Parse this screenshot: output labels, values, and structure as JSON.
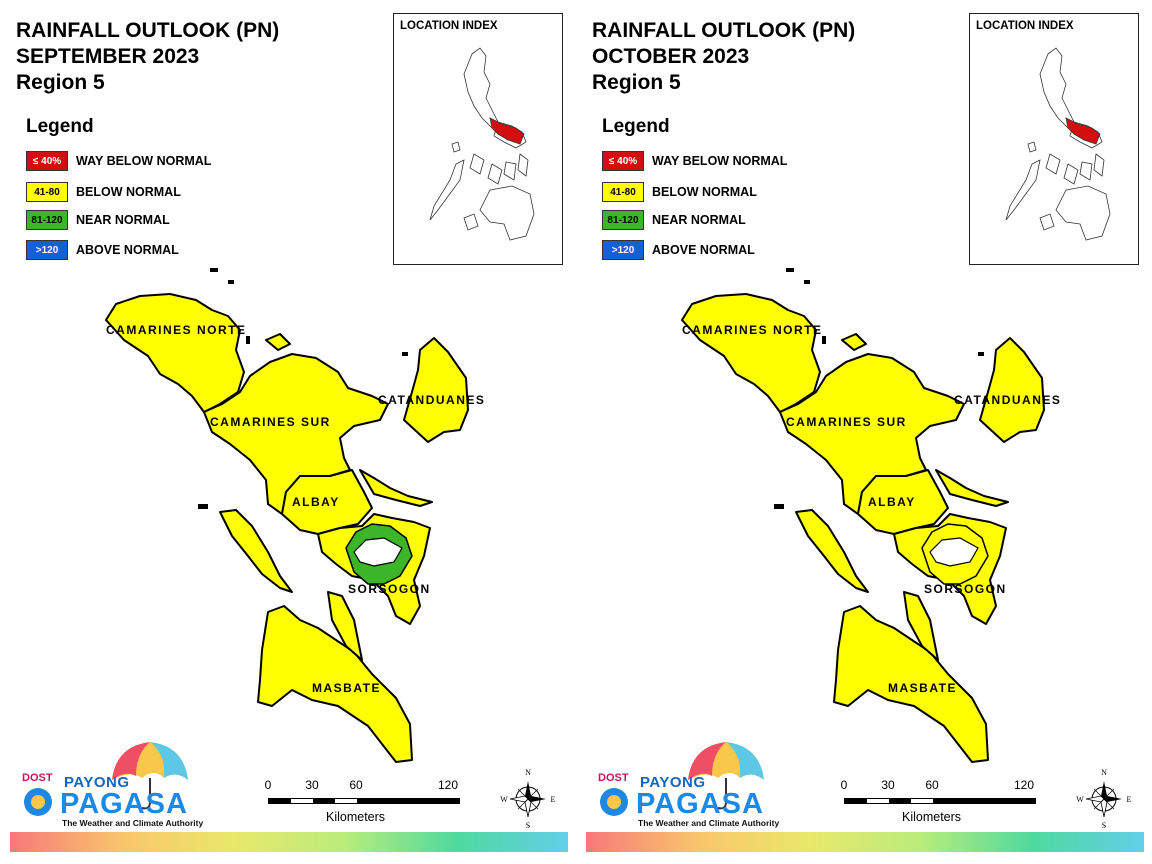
{
  "panels": [
    {
      "title": [
        "RAINFALL OUTLOOK (PN)",
        "SEPTEMBER 2023",
        "Region 5"
      ],
      "legend_title": "Legend",
      "legend": [
        {
          "code": "≤ 40%",
          "label": "WAY BELOW NORMAL",
          "color": "#d40e0e",
          "text_color": "#ffffff"
        },
        {
          "code": "41-80",
          "label": "BELOW NORMAL",
          "color": "#ffff00",
          "text_color": "#000000"
        },
        {
          "code": "81-120",
          "label": "NEAR NORMAL",
          "color": "#3cb528",
          "text_color": "#000000"
        },
        {
          "code": ">120",
          "label": "ABOVE NORMAL",
          "color": "#1560d6",
          "text_color": "#ffffff"
        }
      ],
      "location_index": "LOCATION INDEX",
      "provinces": [
        "CAMARINES NORTE",
        "CATANDUANES",
        "CAMARINES SUR",
        "ALBAY",
        "SORSOGON",
        "MASBATE"
      ],
      "province_class": {
        "CAMARINES NORTE": "BELOW NORMAL",
        "CATANDUANES": "BELOW NORMAL",
        "CAMARINES SUR": "BELOW NORMAL",
        "ALBAY": "BELOW NORMAL",
        "SORSOGON": "BELOW NORMAL (with NEAR NORMAL area)",
        "MASBATE": "BELOW NORMAL"
      },
      "scale": {
        "ticks": [
          "0",
          "30",
          "60",
          "120"
        ],
        "unit": "Kilometers"
      },
      "compass": [
        "N",
        "E",
        "S",
        "W"
      ],
      "logo": {
        "dost": "DOST",
        "payong": "PAYONG",
        "pagasa": "PAGASA",
        "tagline": "The Weather and Climate Authority"
      }
    },
    {
      "title": [
        "RAINFALL OUTLOOK (PN)",
        "OCTOBER 2023",
        "Region 5"
      ],
      "legend_title": "Legend",
      "legend": [
        {
          "code": "≤ 40%",
          "label": "WAY BELOW NORMAL",
          "color": "#d40e0e",
          "text_color": "#ffffff"
        },
        {
          "code": "41-80",
          "label": "BELOW NORMAL",
          "color": "#ffff00",
          "text_color": "#000000"
        },
        {
          "code": "81-120",
          "label": "NEAR NORMAL",
          "color": "#3cb528",
          "text_color": "#000000"
        },
        {
          "code": ">120",
          "label": "ABOVE NORMAL",
          "color": "#1560d6",
          "text_color": "#ffffff"
        }
      ],
      "location_index": "LOCATION INDEX",
      "provinces": [
        "CAMARINES NORTE",
        "CATANDUANES",
        "CAMARINES SUR",
        "ALBAY",
        "SORSOGON",
        "MASBATE"
      ],
      "province_class": {
        "CAMARINES NORTE": "BELOW NORMAL",
        "CATANDUANES": "BELOW NORMAL",
        "CAMARINES SUR": "BELOW NORMAL",
        "ALBAY": "BELOW NORMAL",
        "SORSOGON": "BELOW NORMAL",
        "MASBATE": "BELOW NORMAL"
      },
      "scale": {
        "ticks": [
          "0",
          "30",
          "60",
          "120"
        ],
        "unit": "Kilometers"
      },
      "compass": [
        "N",
        "E",
        "S",
        "W"
      ],
      "logo": {
        "dost": "DOST",
        "payong": "PAYONG",
        "pagasa": "PAGASA",
        "tagline": "The Weather and Climate Authority"
      }
    }
  ],
  "colors": {
    "below_normal": "#ffff00",
    "near_normal": "#3cb528",
    "highlight": "#d40e0e",
    "outline": "#000000"
  }
}
